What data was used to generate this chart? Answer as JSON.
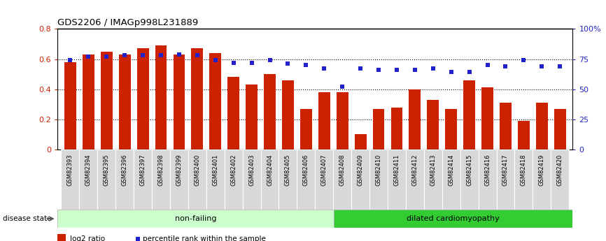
{
  "title": "GDS2206 / IMAGp998L231889",
  "categories": [
    "GSM82393",
    "GSM82394",
    "GSM82395",
    "GSM82396",
    "GSM82397",
    "GSM82398",
    "GSM82399",
    "GSM82400",
    "GSM82401",
    "GSM82402",
    "GSM82403",
    "GSM82404",
    "GSM82405",
    "GSM82406",
    "GSM82407",
    "GSM82408",
    "GSM82409",
    "GSM82410",
    "GSM82411",
    "GSM82412",
    "GSM82413",
    "GSM82414",
    "GSM82415",
    "GSM82416",
    "GSM82417",
    "GSM82418",
    "GSM82419",
    "GSM82420"
  ],
  "log2_ratio": [
    0.58,
    0.63,
    0.65,
    0.63,
    0.67,
    0.69,
    0.63,
    0.67,
    0.64,
    0.48,
    0.43,
    0.5,
    0.46,
    0.27,
    0.38,
    0.38,
    0.1,
    0.27,
    0.28,
    0.4,
    0.33,
    0.27,
    0.46,
    0.41,
    0.31,
    0.19,
    0.31,
    0.27
  ],
  "percentile_rank": [
    74,
    77,
    77,
    78,
    78,
    78,
    79,
    78,
    74,
    72,
    72,
    74,
    71,
    70,
    67,
    52,
    67,
    66,
    66,
    66,
    67,
    64,
    64,
    70,
    69,
    74,
    69,
    69
  ],
  "non_failing_count": 15,
  "bar_color": "#cc2200",
  "dot_color": "#2222cc",
  "nonfailing_bg": "#ccffcc",
  "dilated_bg": "#33cc33",
  "group_label_nonfailing": "non-failing",
  "group_label_dilated": "dilated cardiomyopathy",
  "disease_state_label": "disease state",
  "legend_bar_label": "log2 ratio",
  "legend_dot_label": "percentile rank within the sample",
  "ylim_left": [
    0,
    0.8
  ],
  "ylim_right": [
    0,
    100
  ],
  "yticks_left": [
    0,
    0.2,
    0.4,
    0.6,
    0.8
  ],
  "yticks_right": [
    0,
    25,
    50,
    75,
    100
  ],
  "ytick_labels_left": [
    "0",
    "0.2",
    "0.4",
    "0.6",
    "0.8"
  ],
  "ytick_labels_right": [
    "0",
    "25",
    "50",
    "75",
    "100%"
  ]
}
